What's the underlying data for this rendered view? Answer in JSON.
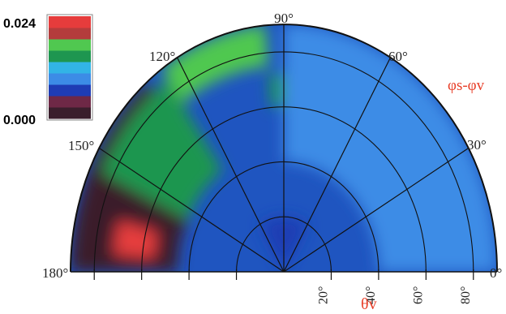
{
  "chart_data": {
    "type": "heatmap",
    "projection": "polar-half",
    "colorbar": {
      "max_label": "0.024",
      "min_label": "0.000",
      "range": [
        0.0,
        0.024
      ],
      "colors": [
        "#3a1e2c",
        "#6e2846",
        "#1e3cb4",
        "#3c8ce6",
        "#32b4e6",
        "#1e9650",
        "#50c850",
        "#b43c3c",
        "#e63c3c"
      ]
    },
    "angular_axis": {
      "label": "φs-φv",
      "ticks": [
        "180°",
        "150°",
        "120°",
        "90°",
        "60°",
        "30°",
        "0°"
      ],
      "tick_values": [
        180,
        150,
        120,
        90,
        60,
        30,
        0
      ]
    },
    "radial_axis": {
      "label": "θv",
      "ticks": [
        "20°",
        "40°",
        "60°",
        "80°"
      ],
      "tick_values": [
        20,
        40,
        60,
        80
      ],
      "range": [
        0,
        90
      ]
    },
    "grid": true,
    "regions": [
      {
        "phi": [
          130,
          180
        ],
        "theta": [
          45,
          90
        ],
        "value": 0.001
      },
      {
        "phi": [
          165,
          175
        ],
        "theta": [
          55,
          72
        ],
        "value": 0.024
      },
      {
        "phi": [
          125,
          155
        ],
        "theta": [
          45,
          85
        ],
        "value": 0.016
      },
      {
        "phi": [
          95,
          125
        ],
        "theta": [
          75,
          90
        ],
        "value": 0.017
      },
      {
        "phi": [
          80,
          95
        ],
        "theta": [
          60,
          72
        ],
        "value": 0.015
      },
      {
        "phi": [
          0,
          90
        ],
        "theta": [
          40,
          90
        ],
        "value": 0.008
      },
      {
        "phi": [
          60,
          120
        ],
        "theta": [
          0,
          20
        ],
        "value": 0.006
      }
    ]
  },
  "colors": {
    "axis_label": "#e8402a",
    "tick_label": "#222222",
    "grid": "#111111",
    "background_field": "#1f55c0"
  }
}
